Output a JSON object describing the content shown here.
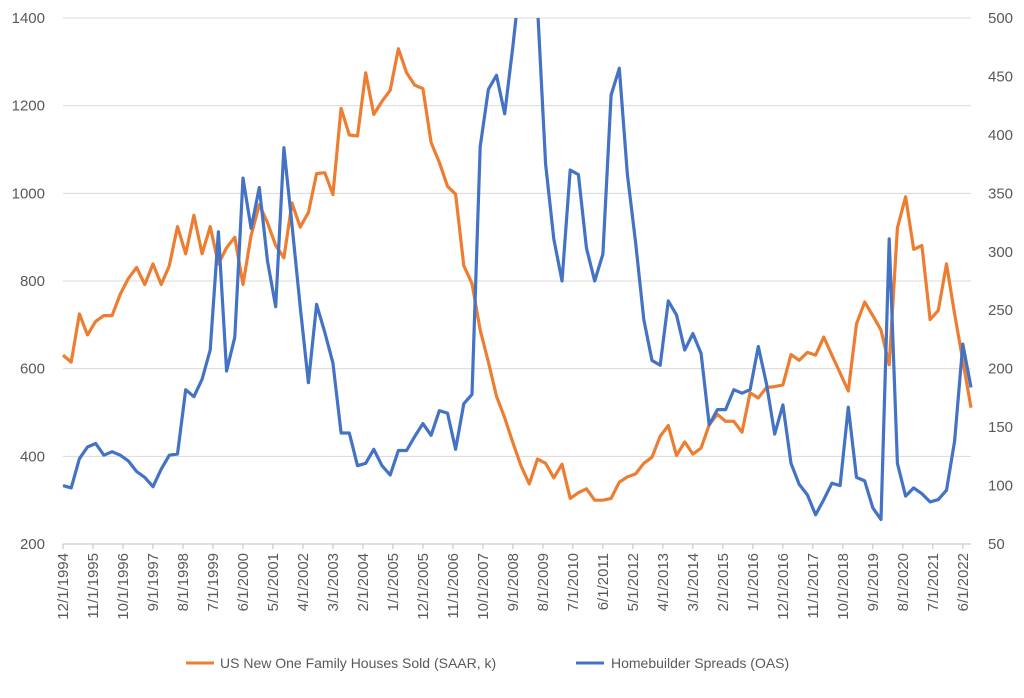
{
  "chart_data": {
    "type": "line",
    "title": "",
    "x_start": "12/1/1994",
    "x_step_months": 3,
    "x_tick_labels": [
      "12/1/1994",
      "11/1/1995",
      "10/1/1996",
      "9/1/1997",
      "8/1/1998",
      "7/1/1999",
      "6/1/2000",
      "5/1/2001",
      "4/1/2002",
      "3/1/2003",
      "2/1/2004",
      "1/1/2005",
      "12/1/2005",
      "11/1/2006",
      "10/1/2007",
      "9/1/2008",
      "8/1/2009",
      "7/1/2010",
      "6/1/2011",
      "5/1/2012",
      "4/1/2013",
      "3/1/2014",
      "2/1/2015",
      "1/1/2016",
      "12/1/2016",
      "11/1/2017",
      "10/1/2018",
      "9/1/2019",
      "8/1/2020",
      "7/1/2021",
      "6/1/2022"
    ],
    "y_left": {
      "ylim": [
        200,
        1400
      ],
      "ticks": [
        "200",
        "400",
        "600",
        "800",
        "1000",
        "1200",
        "1400"
      ],
      "grid": true
    },
    "y_right": {
      "ylim": [
        50,
        500
      ],
      "ticks": [
        "50",
        "100",
        "150",
        "200",
        "250",
        "300",
        "350",
        "400",
        "450",
        "500"
      ]
    },
    "legend_position": "bottom",
    "series": [
      {
        "name": "US New One Family Houses Sold (SAAR, k)",
        "axis": "left",
        "color": "#ED7D31",
        "values": [
          631,
          615,
          725,
          677,
          708,
          721,
          721,
          770,
          806,
          831,
          792,
          839,
          792,
          835,
          924,
          862,
          950,
          862,
          924,
          839,
          876,
          900,
          792,
          904,
          974,
          933,
          881,
          853,
          978,
          923,
          956,
          1045,
          1047,
          997,
          1194,
          1133,
          1131,
          1275,
          1180,
          1210,
          1235,
          1330,
          1275,
          1247,
          1239,
          1116,
          1071,
          1016,
          998,
          835,
          794,
          688,
          615,
          537,
          488,
          431,
          378,
          337,
          394,
          384,
          351,
          382,
          304,
          317,
          326,
          300,
          300,
          304,
          341,
          353,
          360,
          384,
          398,
          446,
          470,
          402,
          433,
          405,
          419,
          472,
          496,
          480,
          480,
          455,
          545,
          533,
          557,
          559,
          563,
          632,
          619,
          637,
          631,
          672,
          631,
          590,
          549,
          702,
          752,
          721,
          688,
          609,
          921,
          992,
          872,
          881,
          712,
          733,
          839,
          725,
          619,
          511
        ]
      },
      {
        "name": "Homebuilder Spreads (OAS)",
        "axis": "right",
        "color": "#4472C4",
        "values": [
          100,
          98,
          123,
          133,
          136,
          126,
          129,
          126,
          121,
          112,
          107,
          99,
          114,
          126,
          127,
          182,
          176,
          191,
          216,
          317,
          198,
          227,
          363,
          320,
          355,
          292,
          253,
          389,
          323,
          253,
          188,
          255,
          231,
          205,
          145,
          145,
          117,
          119,
          131,
          117,
          109,
          130,
          130,
          142,
          153,
          143,
          164,
          162,
          131,
          170,
          178,
          390,
          439,
          451,
          418,
          476,
          540,
          560,
          510,
          375,
          311,
          275,
          370,
          366,
          303,
          275,
          298,
          434,
          457,
          366,
          308,
          242,
          207,
          203,
          258,
          246,
          216,
          230,
          213,
          152,
          165,
          165,
          182,
          179,
          182,
          219,
          187,
          144,
          169,
          119,
          101,
          92,
          75,
          88,
          102,
          100,
          167,
          107,
          104,
          81,
          71,
          311,
          119,
          91,
          98,
          93,
          86,
          88,
          96,
          138,
          221,
          184
        ]
      }
    ]
  }
}
